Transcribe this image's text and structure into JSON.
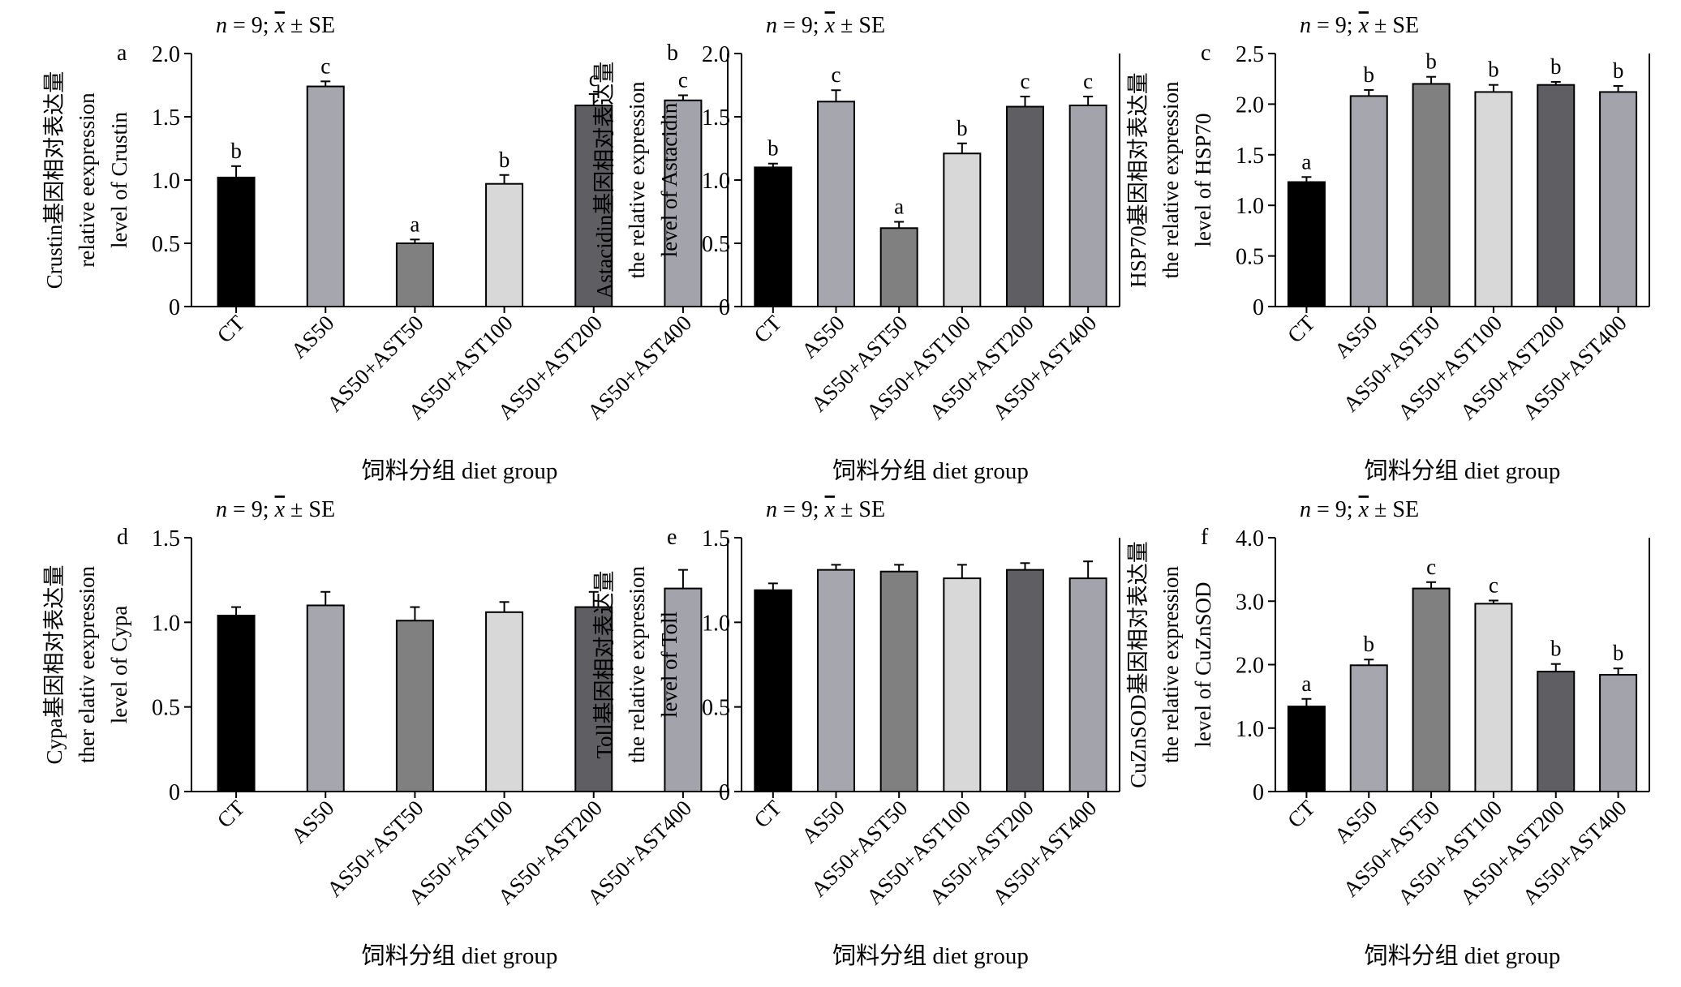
{
  "figure": {
    "common": {
      "categories": [
        "CT",
        "AS50",
        "AS50+AST50",
        "AS50+AST100",
        "AS50+AST200",
        "AS50+AST400"
      ],
      "bar_colors": [
        "#000000",
        "#a6a6ae",
        "#808080",
        "#d8d8d8",
        "#5f5f63",
        "#a3a3ab"
      ],
      "stat_note": {
        "n": "n",
        "eq": " = 9; ",
        "xbar": "x",
        "pm": " ± SE"
      },
      "xlabel": "饲料分组 diet group"
    }
  },
  "chart_data": [
    {
      "type": "bar",
      "panel_letter": "a",
      "ylabel_lines": [
        "Crustin基因相对表达量",
        "relative eexpression",
        "level of Crustin"
      ],
      "categories": [
        "CT",
        "AS50",
        "AS50+AST50",
        "AS50+AST100",
        "AS50+AST200",
        "AS50+AST400"
      ],
      "values": [
        1.02,
        1.74,
        0.5,
        0.97,
        1.59,
        1.63
      ],
      "errors": [
        0.09,
        0.04,
        0.03,
        0.07,
        0.09,
        0.04
      ],
      "sig_letters": [
        "b",
        "c",
        "a",
        "b",
        "c",
        "c"
      ],
      "ylim": [
        0,
        2.0
      ],
      "yticks": [
        "0",
        "0.5",
        "1.0",
        "1.5",
        "2.0"
      ],
      "ytick_values": [
        0,
        0.5,
        1.0,
        1.5,
        2.0
      ],
      "xlabel": "饲料分组 diet group"
    },
    {
      "type": "bar",
      "panel_letter": "b",
      "ylabel_lines": [
        "Astacidin基因相对表达量",
        "the relative expression",
        "level of Astacidin"
      ],
      "categories": [
        "CT",
        "AS50",
        "AS50+AST50",
        "AS50+AST100",
        "AS50+AST200",
        "AS50+AST400"
      ],
      "values": [
        1.1,
        1.62,
        0.62,
        1.21,
        1.58,
        1.59
      ],
      "errors": [
        0.03,
        0.09,
        0.05,
        0.08,
        0.08,
        0.07
      ],
      "sig_letters": [
        "b",
        "c",
        "a",
        "b",
        "c",
        "c"
      ],
      "ylim": [
        0,
        2.0
      ],
      "yticks": [
        "0",
        "0.5",
        "1.0",
        "1.5",
        "2.0"
      ],
      "ytick_values": [
        0,
        0.5,
        1.0,
        1.5,
        2.0
      ],
      "xlabel": "饲料分组 diet group"
    },
    {
      "type": "bar",
      "panel_letter": "c",
      "ylabel_lines": [
        "HSP70基因相对表达量",
        "the relative expression",
        "level of HSP70"
      ],
      "categories": [
        "CT",
        "AS50",
        "AS50+AST50",
        "AS50+AST100",
        "AS50+AST200",
        "AS50+AST400"
      ],
      "values": [
        1.23,
        2.08,
        2.2,
        2.12,
        2.19,
        2.12
      ],
      "errors": [
        0.05,
        0.06,
        0.07,
        0.07,
        0.03,
        0.06
      ],
      "sig_letters": [
        "a",
        "b",
        "b",
        "b",
        "b",
        "b"
      ],
      "ylim": [
        0,
        2.5
      ],
      "yticks": [
        "0",
        "0.5",
        "1.0",
        "1.5",
        "2.0",
        "2.5"
      ],
      "ytick_values": [
        0,
        0.5,
        1.0,
        1.5,
        2.0,
        2.5
      ],
      "xlabel": "饲料分组 diet group"
    },
    {
      "type": "bar",
      "panel_letter": "d",
      "ylabel_lines": [
        "Cypa基因相对表达量",
        "ther elativ eexpression",
        "level of Cypa"
      ],
      "categories": [
        "CT",
        "AS50",
        "AS50+AST50",
        "AS50+AST100",
        "AS50+AST200",
        "AS50+AST400"
      ],
      "values": [
        1.04,
        1.1,
        1.01,
        1.06,
        1.09,
        1.2
      ],
      "errors": [
        0.05,
        0.08,
        0.08,
        0.06,
        0.09,
        0.11
      ],
      "sig_letters": [],
      "ylim": [
        0,
        1.5
      ],
      "yticks": [
        "0",
        "0.5",
        "1.0",
        "1.5"
      ],
      "ytick_values": [
        0,
        0.5,
        1.0,
        1.5
      ],
      "xlabel": "饲料分组 diet group"
    },
    {
      "type": "bar",
      "panel_letter": "e",
      "ylabel_lines": [
        "Toll基因相对表达量",
        "the relative expression",
        "level of Toll"
      ],
      "categories": [
        "CT",
        "AS50",
        "AS50+AST50",
        "AS50+AST100",
        "AS50+AST200",
        "AS50+AST400"
      ],
      "values": [
        1.19,
        1.31,
        1.3,
        1.26,
        1.31,
        1.26
      ],
      "errors": [
        0.04,
        0.03,
        0.04,
        0.08,
        0.04,
        0.1
      ],
      "sig_letters": [],
      "ylim": [
        0,
        1.5
      ],
      "yticks": [
        "0",
        "0.5",
        "1.0",
        "1.5"
      ],
      "ytick_values": [
        0,
        0.5,
        1.0,
        1.5
      ],
      "xlabel": "饲料分组 diet group"
    },
    {
      "type": "bar",
      "panel_letter": "f",
      "ylabel_lines": [
        "CuZnSOD基因相对表达量",
        "the relative expression",
        "level of CuZnSOD"
      ],
      "categories": [
        "CT",
        "AS50",
        "AS50+AST50",
        "AS50+AST100",
        "AS50+AST200",
        "AS50+AST400"
      ],
      "values": [
        1.34,
        1.99,
        3.2,
        2.96,
        1.89,
        1.84
      ],
      "errors": [
        0.12,
        0.09,
        0.1,
        0.05,
        0.12,
        0.1
      ],
      "sig_letters": [
        "a",
        "b",
        "c",
        "c",
        "b",
        "b"
      ],
      "ylim": [
        0,
        4.0
      ],
      "yticks": [
        "0",
        "1.0",
        "2.0",
        "3.0",
        "4.0"
      ],
      "ytick_values": [
        0,
        1.0,
        2.0,
        3.0,
        4.0
      ],
      "xlabel": "饲料分组 diet group"
    }
  ]
}
